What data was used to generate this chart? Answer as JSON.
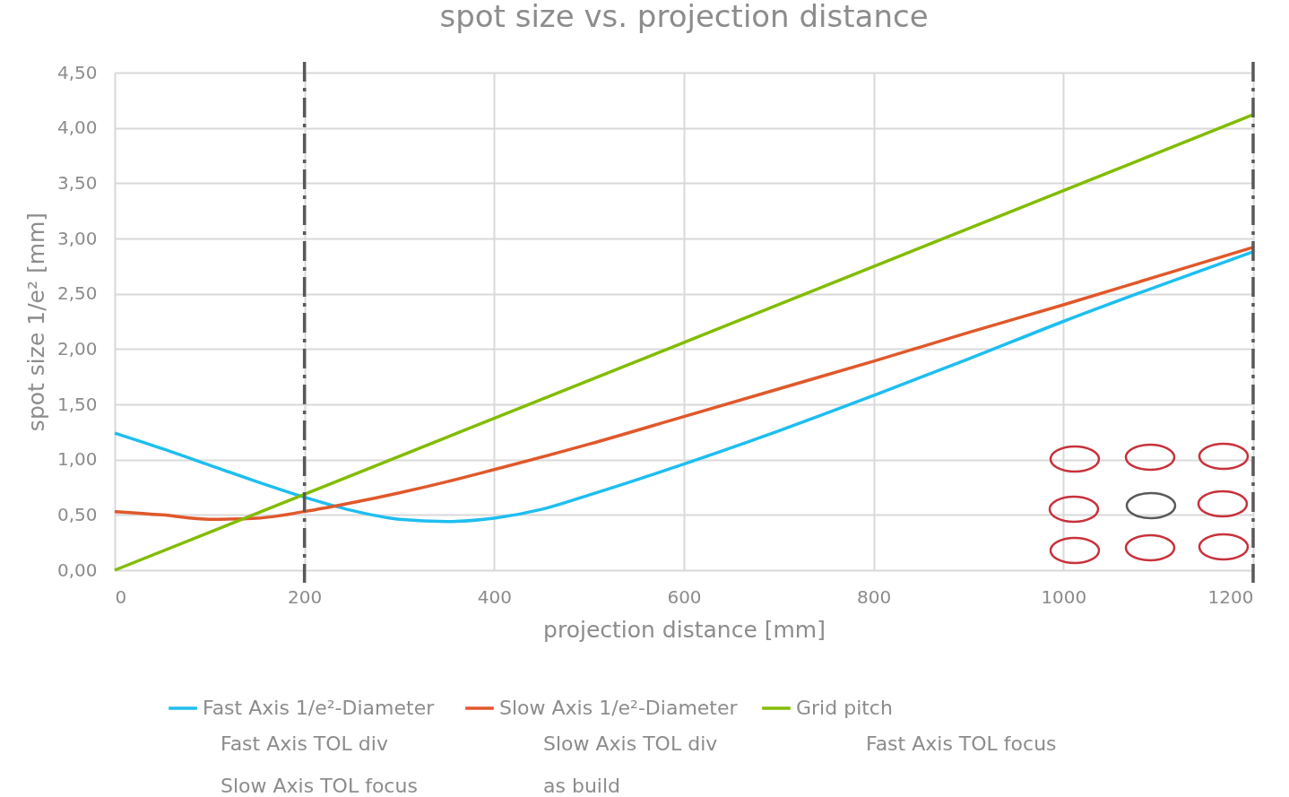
{
  "chart_data": {
    "type": "line",
    "title": "spot size vs. projection distance",
    "xlabel": "projection distance [mm]",
    "ylabel": "spot size 1/e² [mm]",
    "series": [
      {
        "name": "Fast Axis 1/e²-Diameter",
        "color": "#1ebef0",
        "x": [
          0,
          50,
          100,
          150,
          200,
          250,
          300,
          350,
          400,
          450,
          500,
          600,
          700,
          800,
          900,
          1000,
          1100,
          1200
        ],
        "values": [
          1.24,
          1.1,
          0.95,
          0.8,
          0.66,
          0.54,
          0.46,
          0.44,
          0.47,
          0.55,
          0.68,
          0.96,
          1.26,
          1.58,
          1.91,
          2.25,
          2.57,
          2.88
        ]
      },
      {
        "name": "Slow Axis 1/e²-Diameter",
        "color": "#e0582a",
        "x": [
          0,
          50,
          100,
          150,
          200,
          250,
          300,
          350,
          400,
          500,
          600,
          700,
          800,
          900,
          1000,
          1100,
          1200
        ],
        "values": [
          0.53,
          0.5,
          0.46,
          0.47,
          0.53,
          0.61,
          0.7,
          0.8,
          0.91,
          1.14,
          1.39,
          1.64,
          1.89,
          2.15,
          2.4,
          2.66,
          2.92
        ]
      },
      {
        "name": "Grid pitch",
        "color": "#82bc00",
        "x": [
          0,
          1200
        ],
        "values": [
          0,
          4.12
        ]
      }
    ],
    "annotations": [
      "Fast Axis TOL div",
      "Slow Axis TOL div",
      "Fast Axis TOL focus",
      "Slow Axis TOL focus",
      "as build"
    ],
    "xlim": [
      0,
      1200
    ],
    "xticks": [
      0,
      200,
      400,
      600,
      800,
      1000,
      1200
    ],
    "ylim": [
      0,
      4.5
    ],
    "yticks": [
      {
        "value": 0,
        "label": "0,00"
      },
      {
        "value": 0.5,
        "label": "0,50"
      },
      {
        "value": 1,
        "label": "1,00"
      },
      {
        "value": 1.5,
        "label": "1,50"
      },
      {
        "value": 2,
        "label": "2,00"
      },
      {
        "value": 2.5,
        "label": "2,50"
      },
      {
        "value": 3,
        "label": "3,00"
      },
      {
        "value": 3.5,
        "label": "3,50"
      },
      {
        "value": 4,
        "label": "4,00"
      },
      {
        "value": 4.5,
        "label": "4,50"
      }
    ],
    "ref_lines": [
      {
        "axis": "x",
        "value": 200,
        "color": "#595959",
        "line_style": "dashed"
      },
      {
        "axis": "x",
        "value": 1200,
        "color": "#595959",
        "line_style": "dashed"
      }
    ],
    "grid": true,
    "legend": "bottom",
    "marker": "none",
    "line_style": "solid"
  }
}
